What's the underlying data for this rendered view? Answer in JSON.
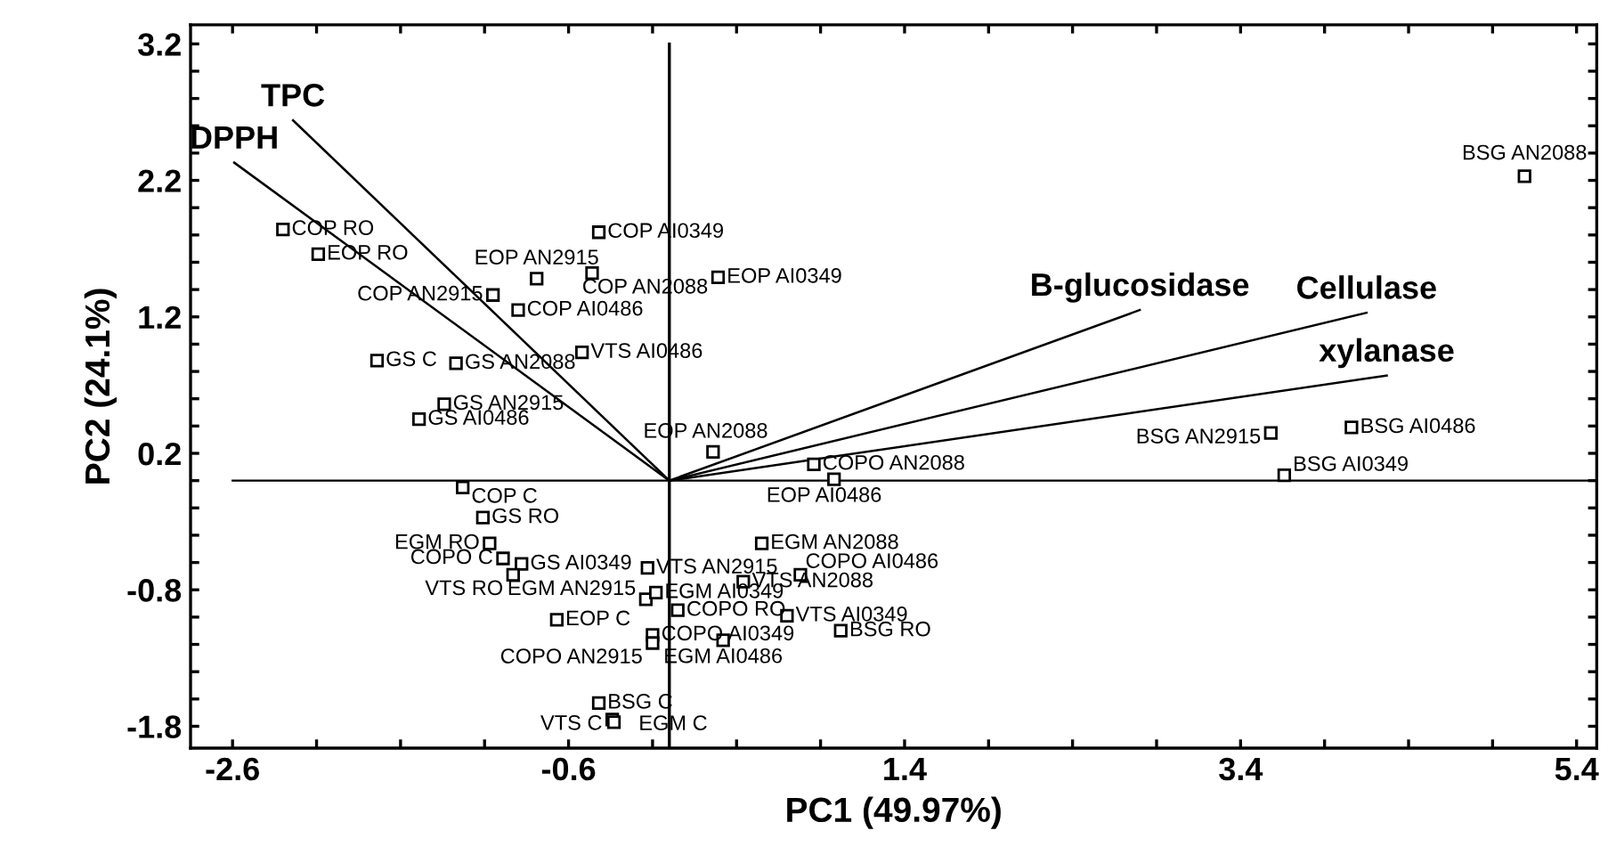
{
  "chart_data": {
    "type": "scatter",
    "xlabel": "PC1 (49.97%)",
    "ylabel": "PC2 (24.1%)",
    "xlim": [
      -2.85,
      5.52
    ],
    "ylim": [
      -1.96,
      3.34
    ],
    "xticks": [
      -2.6,
      {
        "value": -2.1,
        "label": null
      },
      {
        "value": -1.6,
        "label": null
      },
      {
        "value": -1.1,
        "label": null
      },
      -0.6,
      {
        "value": -0.1,
        "label": null
      },
      {
        "value": 0.4,
        "label": null
      },
      {
        "value": 0.9,
        "label": null
      },
      1.4,
      {
        "value": 1.9,
        "label": null
      },
      {
        "value": 2.4,
        "label": null
      },
      {
        "value": 2.9,
        "label": null
      },
      3.4,
      {
        "value": 3.9,
        "label": null
      },
      {
        "value": 4.4,
        "label": null
      },
      {
        "value": 4.9,
        "label": null
      },
      5.4
    ],
    "yticks": [
      -1.8,
      {
        "value": -1.6,
        "label": null
      },
      {
        "value": -1.4,
        "label": null
      },
      {
        "value": -1.2,
        "label": null
      },
      {
        "value": -1.0,
        "label": null
      },
      -0.8,
      {
        "value": -0.6,
        "label": null
      },
      {
        "value": -0.4,
        "label": null
      },
      {
        "value": -0.2,
        "label": null
      },
      {
        "value": 0.0,
        "label": null
      },
      0.2,
      {
        "value": 0.4,
        "label": null
      },
      {
        "value": 0.6,
        "label": null
      },
      {
        "value": 0.8,
        "label": null
      },
      {
        "value": 1.0,
        "label": null
      },
      1.2,
      {
        "value": 1.4,
        "label": null
      },
      {
        "value": 1.6,
        "label": null
      },
      {
        "value": 1.8,
        "label": null
      },
      {
        "value": 2.0,
        "label": null
      },
      2.2,
      {
        "value": 2.4,
        "label": null
      },
      {
        "value": 2.6,
        "label": null
      },
      {
        "value": 2.8,
        "label": null
      },
      {
        "value": 3.0,
        "label": null
      },
      3.2
    ],
    "grid": false,
    "legend": false,
    "ref_lines": [
      {
        "axis": "y",
        "value": 0,
        "color": "#000000"
      },
      {
        "axis": "x",
        "value": 0,
        "color": "#000000"
      }
    ],
    "series": [
      {
        "type": "scatter",
        "marker": "square",
        "color": "#000000",
        "x": [
          -2.3,
          -2.09,
          -0.42,
          -0.79,
          -0.46,
          0.29,
          -1.05,
          -0.9,
          -1.74,
          -1.27,
          -0.52,
          -1.34,
          -1.49,
          0.26,
          0.86,
          0.98,
          -1.23,
          -1.11,
          -1.07,
          -0.99,
          -0.88,
          -0.93,
          -0.13,
          -0.14,
          -0.08,
          0.05,
          -0.67,
          -0.1,
          -0.1,
          0.32,
          -0.42,
          -0.34,
          -0.33,
          0.55,
          0.44,
          0.78,
          0.7,
          1.02,
          3.58,
          4.06,
          3.66,
          5.09
        ],
        "values": [
          1.84,
          1.66,
          1.82,
          1.48,
          1.52,
          1.49,
          1.36,
          1.25,
          0.88,
          0.86,
          0.94,
          0.56,
          0.45,
          0.21,
          0.12,
          0.01,
          -0.05,
          -0.27,
          -0.46,
          -0.57,
          -0.61,
          -0.69,
          -0.64,
          -0.87,
          -0.82,
          -0.95,
          -1.02,
          -1.13,
          -1.19,
          -1.17,
          -1.63,
          -1.75,
          -1.77,
          -0.46,
          -0.74,
          -0.69,
          -0.99,
          -1.1,
          0.35,
          0.39,
          0.04,
          2.23
        ],
        "value_labels": [
          "COP RO",
          "EOP RO",
          "COP AI0349",
          "EOP AN2915",
          "COP AN2088",
          "EOP AI0349",
          "COP AN2915",
          "COP AI0486",
          "GS C",
          "GS AN2088",
          "VTS AI0486",
          "GS AN2915",
          "GS AI0486",
          "EOP AN2088",
          "COPO AN2088",
          "EOP AI0486",
          "COP C",
          "GS RO",
          "EGM RO",
          "COPO C",
          "GS AI0349",
          "VTS RO",
          "VTS AN2915",
          "EGM AN2915",
          "EGM AI0349",
          "COPO RO",
          "EOP C",
          "COPO AI0349",
          "COPO AN2915",
          "EGM AI0486",
          "BSG C",
          "VTS C",
          "EGM C",
          "EGM AN2088",
          "VTS AN2088",
          "COPO AI0486",
          "VTS AI0349",
          "BSG RO",
          "BSG AN2915",
          "BSG AI0486",
          "BSG AI0349",
          "BSG AN2088"
        ]
      },
      {
        "type": "line",
        "name": "TPC",
        "color": "#000000",
        "x": [
          0,
          -2.24
        ],
        "values": [
          0,
          2.64
        ]
      },
      {
        "type": "line",
        "name": "DPPH",
        "color": "#000000",
        "x": [
          0,
          -2.59
        ],
        "values": [
          0,
          2.33
        ]
      },
      {
        "type": "line",
        "name": "B-glucosidase",
        "color": "#000000",
        "x": [
          0,
          2.8
        ],
        "values": [
          0,
          1.25
        ]
      },
      {
        "type": "line",
        "name": "Cellulase",
        "color": "#000000",
        "x": [
          0,
          4.15
        ],
        "values": [
          0,
          1.23
        ]
      },
      {
        "type": "line",
        "name": "xylanase",
        "color": "#000000",
        "x": [
          0,
          4.27
        ],
        "values": [
          0,
          0.77
        ]
      }
    ]
  }
}
